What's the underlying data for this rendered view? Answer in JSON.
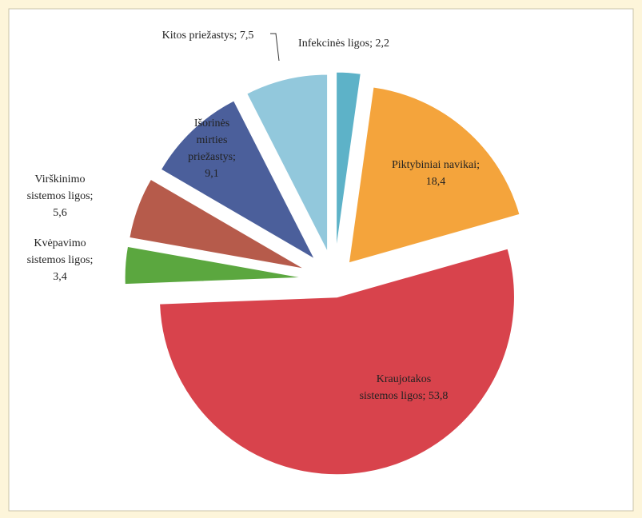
{
  "chart_data": {
    "type": "pie",
    "categories": [
      "Infekcinės ligos;",
      "Piktybiniai navikai;",
      "Kraujotakos sistemos ligos;",
      "Kvėpavimo sistemos ligos;",
      "Virškinimo sistemos ligos;",
      "Išorinės mirties priežastys;",
      "Kitos priežastys;"
    ],
    "values": [
      2.2,
      18.4,
      53.8,
      3.4,
      5.6,
      9.1,
      7.5
    ],
    "value_labels": [
      "2,2",
      "18,4",
      "53,8",
      "3,4",
      "5,6",
      "9,1",
      "7,5"
    ],
    "colors": [
      "#5db2c8",
      "#f4a43c",
      "#d8434c",
      "#5ba73f",
      "#b65b4b",
      "#4b5f9b",
      "#92c8dc"
    ]
  }
}
